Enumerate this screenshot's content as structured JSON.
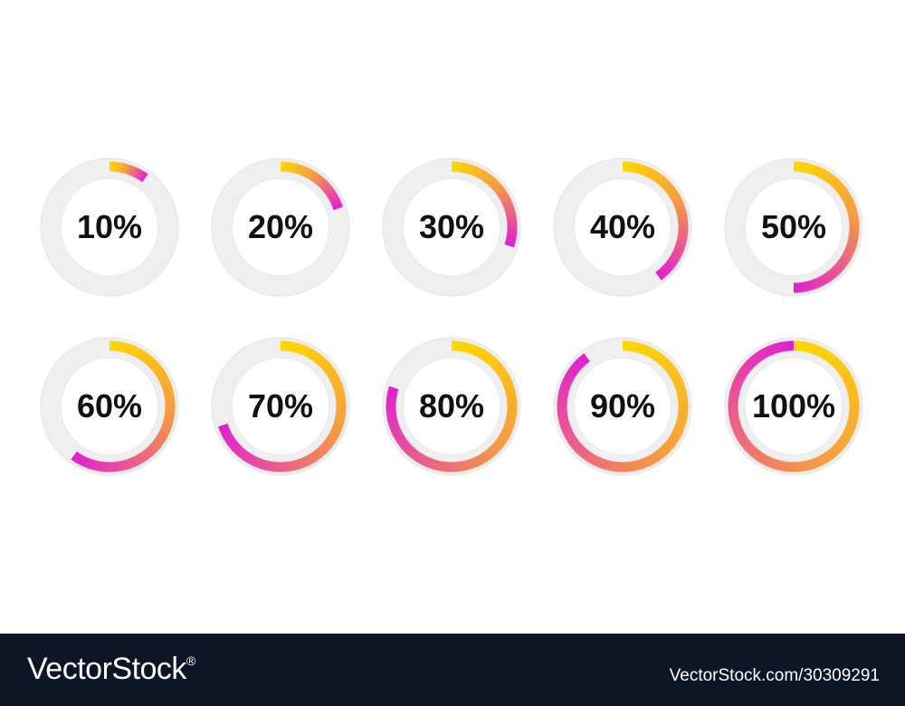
{
  "rings": [
    {
      "label": "10%",
      "value": 10
    },
    {
      "label": "20%",
      "value": 20
    },
    {
      "label": "30%",
      "value": 30
    },
    {
      "label": "40%",
      "value": 40
    },
    {
      "label": "50%",
      "value": 50
    },
    {
      "label": "60%",
      "value": 60
    },
    {
      "label": "70%",
      "value": 70
    },
    {
      "label": "80%",
      "value": 80
    },
    {
      "label": "90%",
      "value": 90
    },
    {
      "label": "100%",
      "value": 100
    }
  ],
  "footer": {
    "brand": "VectorStock",
    "registered": "®",
    "url": "VectorStock.com/30309291"
  }
}
